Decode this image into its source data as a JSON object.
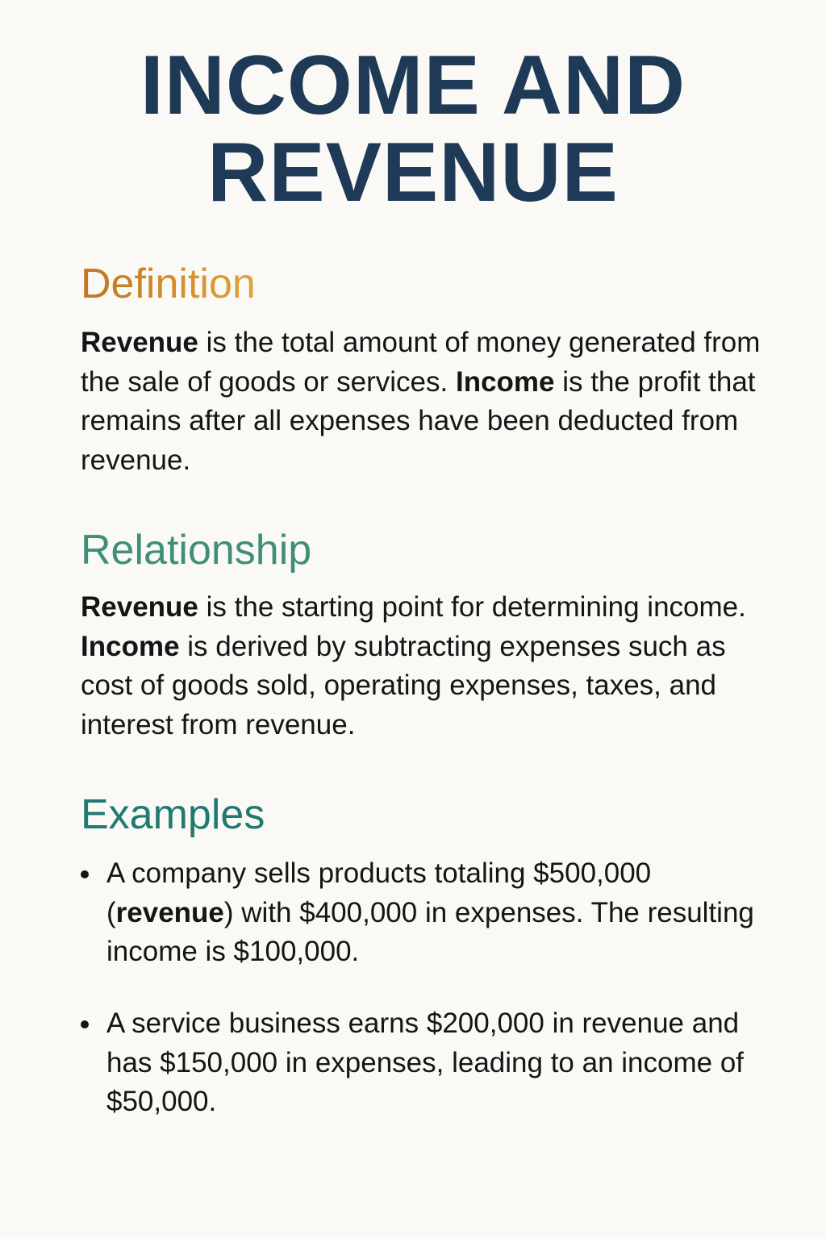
{
  "title": {
    "line1": "INCOME AND",
    "line2": "REVENUE"
  },
  "colors": {
    "title": "#1f3a57",
    "definition_heading_start": "#c0741f",
    "definition_heading_end": "#e0a43a",
    "relationship_heading": "#3f8f76",
    "examples_heading": "#1f7a6f",
    "background": "#faf9f6",
    "body_text": "#151515"
  },
  "definition": {
    "heading": "Definition",
    "term1": "Revenue",
    "text1": " is the total amount of money generated from the sale of goods or services. ",
    "term2": "Income",
    "text2": " is the profit that remains after all expenses have been deducted from revenue."
  },
  "relationship": {
    "heading": "Relationship",
    "term1": "Revenue",
    "text1": " is the starting point for determining income. ",
    "term2": "Income",
    "text2": " is derived by subtracting expenses such as cost of goods sold, operating expenses, taxes, and interest from revenue."
  },
  "examples": {
    "heading": "Examples",
    "items": [
      {
        "before": "A company sells products totaling $500,000 (",
        "bold": "revenue",
        "after": ") with $400,000 in expenses. The resulting income is $100,000."
      },
      {
        "before": "A service business earns $200,000 in revenue and has $150,000 in expenses, leading to an income of $50,000.",
        "bold": "",
        "after": ""
      }
    ]
  }
}
